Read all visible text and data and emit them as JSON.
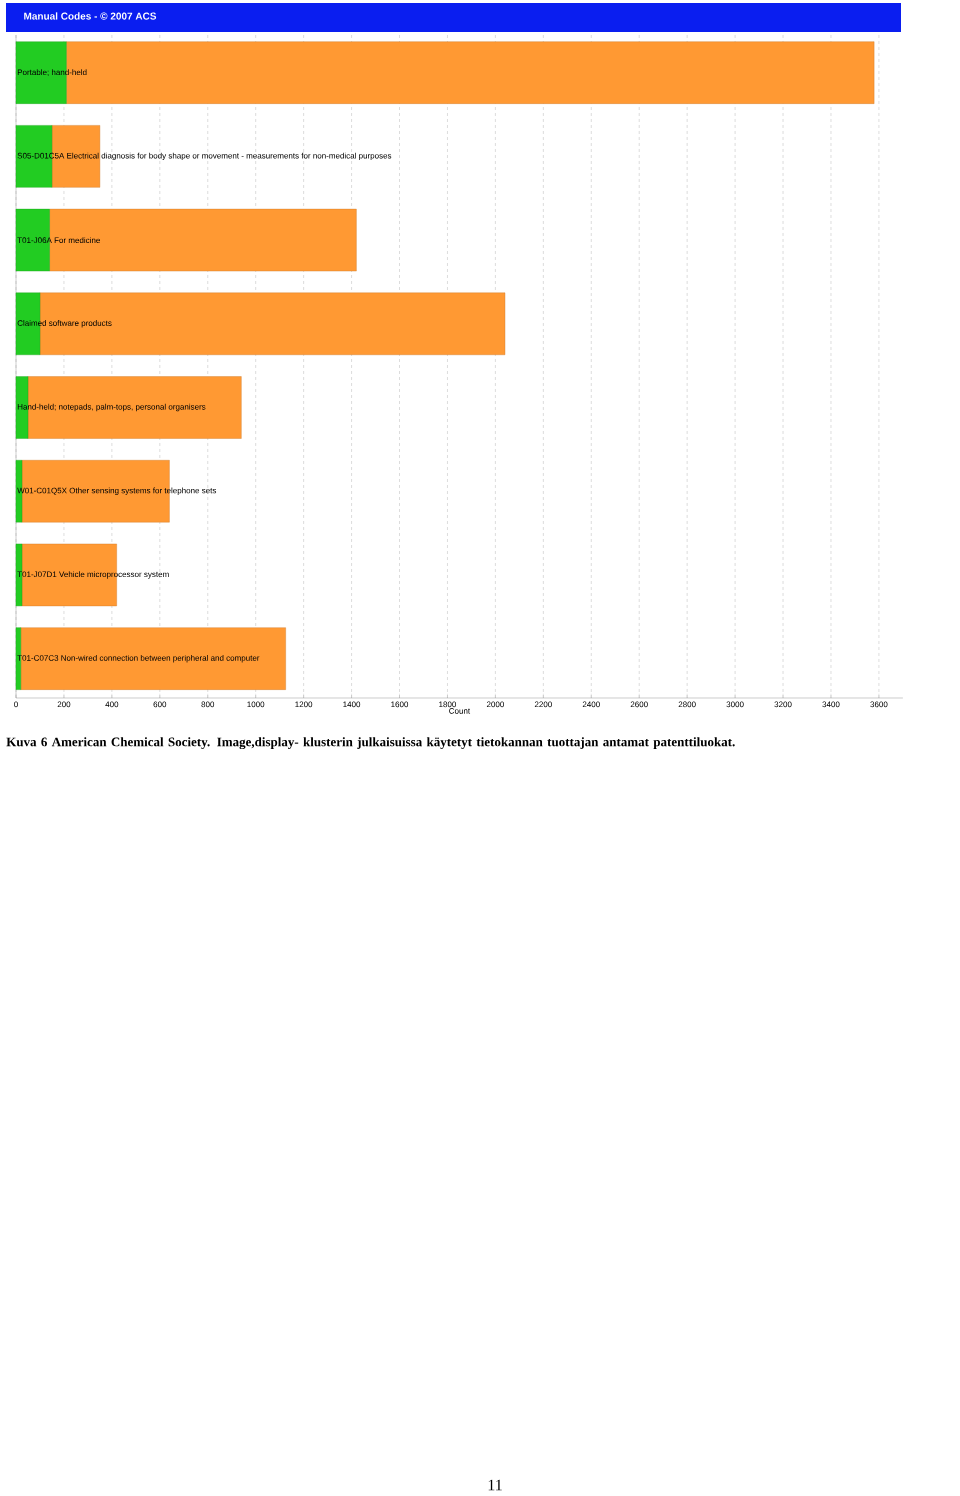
{
  "chart_data": {
    "type": "bar",
    "orientation": "horizontal",
    "stacked": true,
    "title": "Manual Codes - © 2007 ACS",
    "xlabel": "Count",
    "categories": [
      "Portable; hand-held",
      "S05-D01C5A Electrical diagnosis for body shape or movement - measurements for non-medical purposes",
      "T01-J06A For medicine",
      "Claimed software products",
      "Hand-held; notepads, palm-tops, personal organisers",
      "W01-C01Q5X Other sensing systems for telephone sets",
      "T01-J07D1 Vehicle microprocessor system",
      "T01-C07C3 Non-wired connection between peripheral and computer"
    ],
    "series": [
      {
        "color": "#22cc22",
        "values": [
          210,
          150,
          140,
          100,
          50,
          25,
          25,
          20
        ]
      },
      {
        "color": "#ff9933",
        "values": [
          3370,
          200,
          1280,
          1940,
          890,
          615,
          395,
          1105
        ]
      }
    ],
    "xlim": [
      0,
      3700
    ],
    "xticks": [
      0,
      200,
      400,
      600,
      800,
      1000,
      1200,
      1400,
      1600,
      1800,
      2000,
      2200,
      2400,
      2600,
      2800,
      3000,
      3200,
      3400,
      3600
    ],
    "grid": "x",
    "annotations": [
      "Kuva 6 American Chemical Society. Image,display- klusterin julkaisuissa käytetyt tietokannan tuottajan antamat patenttiluokat.",
      "11"
    ]
  }
}
